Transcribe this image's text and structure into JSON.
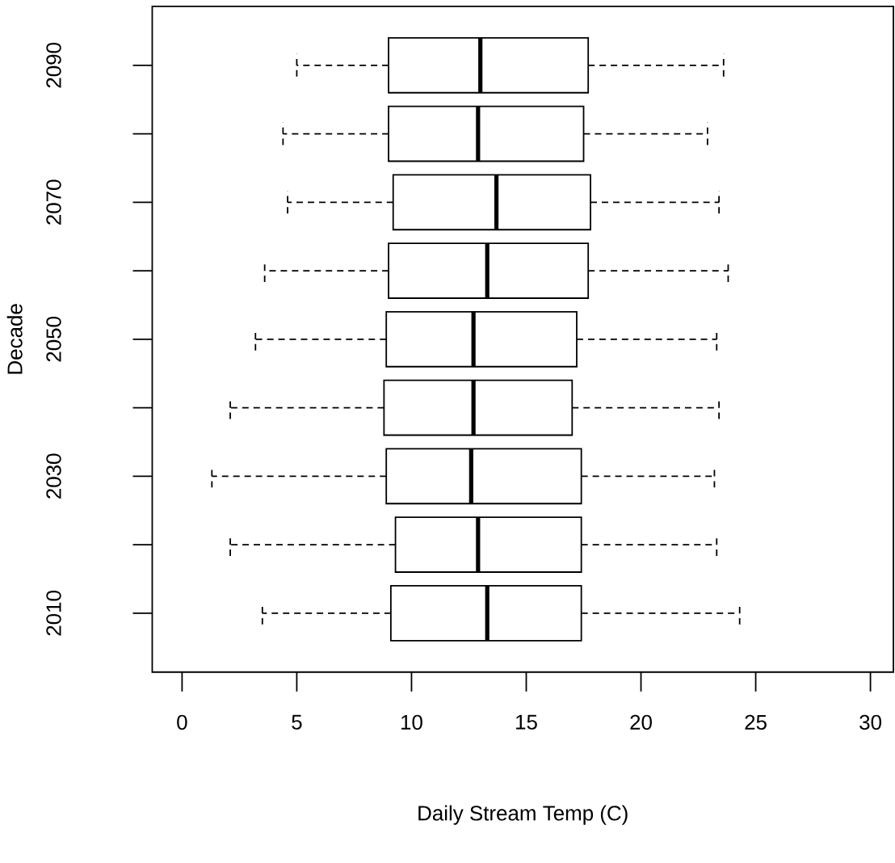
{
  "chart_data": {
    "type": "box",
    "orientation": "horizontal",
    "xlabel": "Daily Stream Temp (C)",
    "ylabel": "Decade",
    "categories": [
      "2090",
      null,
      "2070",
      null,
      "2050",
      null,
      "2030",
      null,
      "2010"
    ],
    "xlim": [
      -1.3,
      31
    ],
    "xticks": [
      0,
      5,
      10,
      15,
      20,
      25,
      30
    ],
    "boxes": [
      {
        "low": 5.0,
        "q1": 9.0,
        "median": 13.0,
        "q3": 17.7,
        "high": 23.6
      },
      {
        "low": 4.4,
        "q1": 9.0,
        "median": 12.9,
        "q3": 17.5,
        "high": 22.9
      },
      {
        "low": 4.6,
        "q1": 9.2,
        "median": 13.7,
        "q3": 17.8,
        "high": 23.4
      },
      {
        "low": 3.6,
        "q1": 9.0,
        "median": 13.3,
        "q3": 17.7,
        "high": 23.8
      },
      {
        "low": 3.2,
        "q1": 8.9,
        "median": 12.7,
        "q3": 17.2,
        "high": 23.3
      },
      {
        "low": 2.1,
        "q1": 8.8,
        "median": 12.7,
        "q3": 17.0,
        "high": 23.4
      },
      {
        "low": 1.3,
        "q1": 8.9,
        "median": 12.6,
        "q3": 17.4,
        "high": 23.2
      },
      {
        "low": 2.1,
        "q1": 9.3,
        "median": 12.9,
        "q3": 17.4,
        "high": 23.3
      },
      {
        "low": 3.5,
        "q1": 9.1,
        "median": 13.3,
        "q3": 17.4,
        "high": 24.3
      }
    ]
  }
}
